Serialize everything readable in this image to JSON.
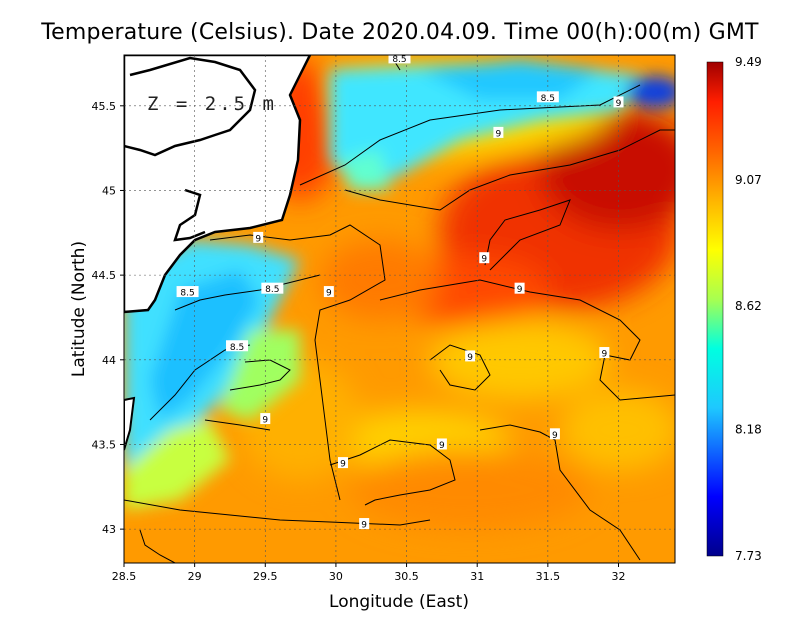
{
  "title": "Temperature (Celsius). Date 2020.04.09. Time 00(h):00(m)  GMT",
  "depth_label": "Z = 2.5 m",
  "axes": {
    "xlabel": "Longitude (East)",
    "ylabel": "Latitude (North)",
    "xlim": [
      28.5,
      32.4
    ],
    "ylim": [
      42.8,
      45.8
    ],
    "xticks": [
      "28.5",
      "29",
      "29.5",
      "30",
      "30.5",
      "31",
      "31.5",
      "32"
    ],
    "yticks": [
      "43",
      "43.5",
      "44",
      "44.5",
      "45",
      "45.5"
    ]
  },
  "colorbar": {
    "min": 7.73,
    "max": 9.49,
    "labels": [
      "9.49",
      "9.07",
      "8.62",
      "8.18",
      "7.73"
    ]
  },
  "contour_labels": [
    {
      "text": "8.5",
      "lon": 30.45,
      "lat": 45.78
    },
    {
      "text": "8.5",
      "lon": 31.5,
      "lat": 45.55
    },
    {
      "text": "9",
      "lon": 32.0,
      "lat": 45.52
    },
    {
      "text": "9",
      "lon": 31.15,
      "lat": 45.34
    },
    {
      "text": "9",
      "lon": 29.45,
      "lat": 44.72
    },
    {
      "text": "9",
      "lon": 31.05,
      "lat": 44.6
    },
    {
      "text": "8.5",
      "lon": 28.95,
      "lat": 44.4
    },
    {
      "text": "8.5",
      "lon": 29.55,
      "lat": 44.42
    },
    {
      "text": "9",
      "lon": 29.95,
      "lat": 44.4
    },
    {
      "text": "9",
      "lon": 31.3,
      "lat": 44.42
    },
    {
      "text": "8.5",
      "lon": 29.3,
      "lat": 44.08
    },
    {
      "text": "9",
      "lon": 30.95,
      "lat": 44.02
    },
    {
      "text": "9",
      "lon": 31.9,
      "lat": 44.04
    },
    {
      "text": "9",
      "lon": 29.5,
      "lat": 43.65
    },
    {
      "text": "9",
      "lon": 31.55,
      "lat": 43.56
    },
    {
      "text": "9",
      "lon": 30.75,
      "lat": 43.5
    },
    {
      "text": "9",
      "lon": 30.05,
      "lat": 43.39
    },
    {
      "text": "9",
      "lon": 30.2,
      "lat": 43.03
    }
  ],
  "colors": {
    "scale": [
      "#00008b",
      "#0000ff",
      "#1ec8ff",
      "#00ffe0",
      "#a8ff50",
      "#ffff00",
      "#ffb400",
      "#ff6400",
      "#ff1e00",
      "#a00000"
    ]
  }
}
